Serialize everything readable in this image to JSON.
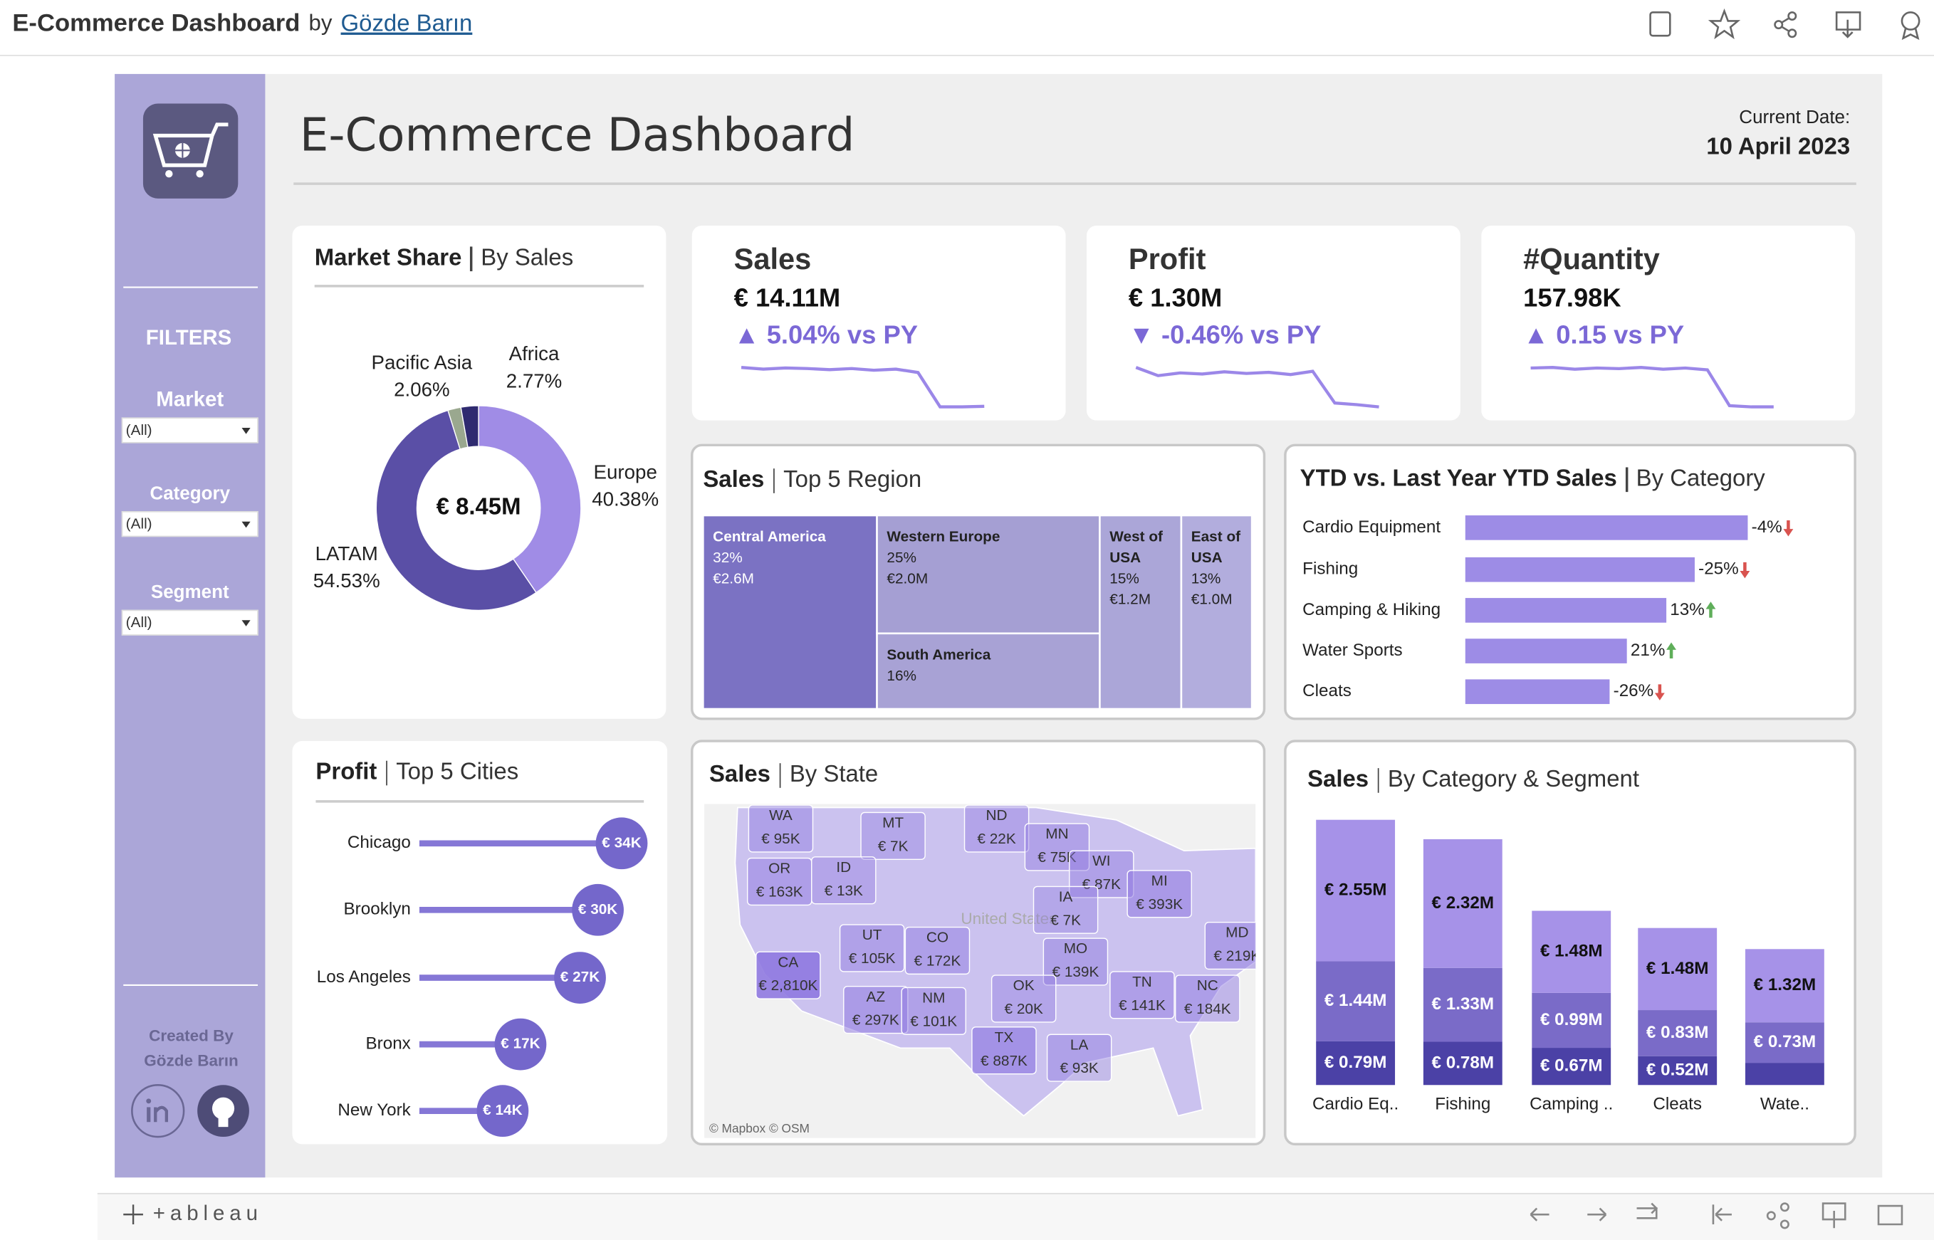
{
  "header": {
    "title": "E-Commerce Dashboard",
    "by": "by",
    "author": "Gözde Barın"
  },
  "sidebar": {
    "filters_title": "FILTERS",
    "filters": [
      {
        "label": "Market",
        "value": "(All)"
      },
      {
        "label": "Category",
        "value": "(All)"
      },
      {
        "label": "Segment",
        "value": "(All)"
      }
    ],
    "created_by": "Created By",
    "creator": "Gözde Barın"
  },
  "dashboard": {
    "title": "E-Commerce Dashboard",
    "date_label": "Current Date:",
    "date": "10 April 2023"
  },
  "kpis": [
    {
      "title": "Sales",
      "value": "€ 14.11M",
      "change": "▲ 5.04% vs PY",
      "trend": [
        8.0,
        7.7,
        7.9,
        7.8,
        7.6,
        7.8,
        7.5,
        7.7,
        7.1,
        1.0,
        1.0,
        1.1
      ]
    },
    {
      "title": "Profit",
      "value": "€ 1.30M",
      "change": "▼ -0.46% vs PY",
      "trend": [
        8.0,
        6.5,
        7.0,
        6.8,
        7.2,
        6.9,
        7.1,
        6.7,
        7.3,
        1.5,
        1.2,
        0.8
      ]
    },
    {
      "title": "#Quantity",
      "value": "157.98K",
      "change": "▲ 0.15 vs PY",
      "trend": [
        7.5,
        7.6,
        7.3,
        7.5,
        7.4,
        7.6,
        7.3,
        7.5,
        7.2,
        1.2,
        1.0,
        1.0
      ]
    }
  ],
  "market_share": {
    "type": "donut",
    "title": "Market Share",
    "subtitle": "By Sales",
    "total": "€ 8.45M",
    "categories": [
      "Europe",
      "LATAM",
      "Pacific Asia",
      "Africa"
    ],
    "values": [
      40.38,
      54.53,
      2.06,
      2.77
    ],
    "value_labels": [
      "40.38%",
      "54.53%",
      "2.06%",
      "2.77%"
    ],
    "colors": [
      "#a08ce6",
      "#5a4fa6",
      "#9aa88f",
      "#2f2b70"
    ]
  },
  "regions": {
    "type": "treemap",
    "title": "Sales",
    "subtitle": "Top 5 Region",
    "categories": [
      "Central America",
      "Western Europe",
      "South America",
      "West of USA",
      "East of USA"
    ],
    "values": [
      32,
      25,
      16,
      15,
      13
    ],
    "value_labels": [
      "32%",
      "25%",
      "16%",
      "15%",
      "13%"
    ],
    "sales": [
      "€2.6M",
      "€2.0M",
      null,
      "€1.2M",
      "€1.0M"
    ],
    "colors": [
      "#7b72c3",
      "#a59fd3",
      "#a8a2d5",
      "#aba6d8",
      "#b2addd"
    ]
  },
  "ytd": {
    "type": "bar",
    "title": "YTD vs. Last Year YTD Sales",
    "subtitle": "By Category",
    "categories": [
      "Cardio Equipment",
      "Fishing",
      "Camping & Hiking",
      "Water Sports",
      "Cleats"
    ],
    "values": [
      229,
      186,
      163,
      131,
      117
    ],
    "changes": [
      -4,
      -25,
      13,
      21,
      -26
    ],
    "change_labels": [
      "-4%",
      "-25%",
      "13%",
      "21%",
      "-26%"
    ],
    "color": "#9d8ce6"
  },
  "cities": {
    "type": "lollipop",
    "title": "Profit",
    "subtitle": "Top 5 Cities",
    "categories": [
      "Chicago",
      "Brooklyn",
      "Los Angeles",
      "Bronx",
      "New York"
    ],
    "values": [
      34000,
      30000,
      27000,
      17000,
      14000
    ],
    "value_labels": [
      "€ 34K",
      "€ 30K",
      "€ 27K",
      "€ 17K",
      "€ 14K"
    ],
    "color": "#7467cb"
  },
  "states": {
    "type": "map",
    "title": "Sales",
    "subtitle": "By State",
    "base_label": "United States",
    "credits": "© Mapbox  © OSM",
    "states": [
      "WA",
      "MT",
      "ND",
      "MN",
      "WI",
      "MI",
      "OR",
      "ID",
      "IA",
      "UT",
      "CO",
      "CA",
      "MO",
      "OK",
      "AZ",
      "NM",
      "TN",
      "NC",
      "TX",
      "LA",
      "MD"
    ],
    "values": [
      95000,
      7000,
      22000,
      75000,
      87000,
      393000,
      163000,
      13000,
      7000,
      105000,
      172000,
      2810000,
      139000,
      20000,
      297000,
      101000,
      141000,
      184000,
      887000,
      93000,
      219000
    ],
    "value_labels": [
      "€ 95K",
      "€ 7K",
      "€ 22K",
      "€ 75K",
      "€ 87K",
      "€ 393K",
      "€ 163K",
      "€ 13K",
      "€ 7K",
      "€ 105K",
      "€ 172K",
      "€ 2,810K",
      "€ 139K",
      "€ 20K",
      "€ 297K",
      "€ 101K",
      "€ 141K",
      "€ 184K",
      "€ 887K",
      "€ 93K",
      "€ 219K"
    ]
  },
  "segments": {
    "type": "stacked_bar",
    "title": "Sales",
    "subtitle": "By Category & Segment",
    "categories": [
      "Cardio Eq..",
      "Fishing",
      "Camping ..",
      "Cleats",
      "Wate.."
    ],
    "series": [
      {
        "color": "#4b41a6",
        "values": [
          0.79,
          0.78,
          0.67,
          0.52,
          0.4
        ],
        "value_labels": [
          "€ 0.79M",
          "€ 0.78M",
          "€ 0.67M",
          "€ 0.52M",
          null
        ]
      },
      {
        "color": "#7a6bc8",
        "values": [
          1.44,
          1.33,
          0.99,
          0.83,
          0.73
        ],
        "value_labels": [
          "€ 1.44M",
          "€ 1.33M",
          "€ 0.99M",
          "€ 0.83M",
          "€ 0.73M"
        ]
      },
      {
        "color": "#a692e8",
        "values": [
          2.55,
          2.32,
          1.48,
          1.48,
          1.32
        ],
        "value_labels": [
          "€ 2.55M",
          "€ 2.32M",
          "€ 1.48M",
          "€ 1.48M",
          "€ 1.32M"
        ]
      }
    ]
  },
  "footer": {
    "logo": "+ableau"
  }
}
